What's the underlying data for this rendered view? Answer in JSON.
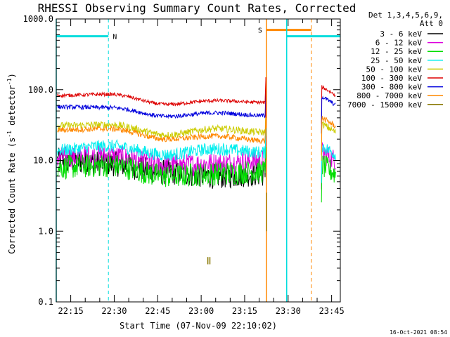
{
  "chart_data": {
    "type": "line",
    "title": "RHESSI Observing Summary Count Rates, Corrected",
    "xlabel": "Start Time (07-Nov-09 22:10:02)",
    "ylabel_main": "Corrected Count Rate (s",
    "ylabel_sup1": "-1",
    "ylabel_mid": " detector",
    "ylabel_sup2": "-1",
    "ylabel_end": ")",
    "yscale": "log",
    "ylim": [
      0.1,
      1000.0
    ],
    "xlim_minutes": [
      0,
      98
    ],
    "yticks": [
      "0.1",
      "1.0",
      "10.0",
      "100.0",
      "1000.0"
    ],
    "xticks": [
      {
        "m": 5,
        "label": "22:15"
      },
      {
        "m": 20,
        "label": "22:30"
      },
      {
        "m": 35,
        "label": "22:45"
      },
      {
        "m": 50,
        "label": "23:00"
      },
      {
        "m": 65,
        "label": "23:15"
      },
      {
        "m": 80,
        "label": "23:30"
      },
      {
        "m": 95,
        "label": "23:45"
      }
    ],
    "legend_header": [
      "Det 1,3,4,5,6,9,",
      "Att 0"
    ],
    "series": [
      {
        "name": "3 - 6 keV",
        "color": "#000000",
        "levels": [
          10,
          9,
          6.8,
          6.0,
          6.5
        ],
        "post": null
      },
      {
        "name": "6 - 12 keV",
        "color": "#dd00dd",
        "levels": [
          11,
          11.5,
          8.5,
          9.0,
          10
        ],
        "post": 13
      },
      {
        "name": "12 - 25 keV",
        "color": "#00dd00",
        "levels": [
          8,
          8.5,
          6.0,
          6.5,
          7
        ],
        "post": 8.5
      },
      {
        "name": "25 - 50 keV",
        "color": "#00eeee",
        "levels": [
          14,
          16,
          12,
          14.5,
          13
        ],
        "post": 16
      },
      {
        "name": "50 - 100 keV",
        "color": "#cccc00",
        "levels": [
          31,
          32,
          23,
          28,
          25
        ],
        "post": 33
      },
      {
        "name": "100 - 300 keV",
        "color": "#dd0000",
        "levels": [
          83,
          86,
          62,
          70,
          66
        ],
        "post": 110
      },
      {
        "name": "300 - 800 keV",
        "color": "#0000dd",
        "levels": [
          57,
          56,
          42,
          47,
          43
        ],
        "post": 80
      },
      {
        "name": "800 - 7000 keV",
        "color": "#ff8800",
        "levels": [
          27,
          28,
          20,
          22,
          19
        ],
        "post": 40
      },
      {
        "name": "7000 - 15000 keV",
        "color": "#887700",
        "levels": null,
        "post": null
      }
    ],
    "markers": [
      {
        "label": "N",
        "color": "#00dddd",
        "start_m": 0,
        "end_m": 18,
        "bar_y": 570,
        "dashed_m": 18
      },
      {
        "label": "S",
        "color": "#ff8800",
        "start_m": 72.5,
        "end_m": 88,
        "bar_y": 700,
        "dashed_m": 88
      },
      {
        "label": "",
        "color": "#00dddd",
        "start_m": 79.5,
        "end_m": 98,
        "bar_y": 570,
        "dashed_m": 98
      }
    ],
    "gap_minutes": [
      72.5,
      91.5
    ],
    "grid": false,
    "legend_placement": "top-right"
  },
  "timestamp": "16-Oct-2021 08:54"
}
